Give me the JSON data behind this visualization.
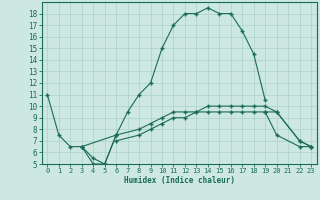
{
  "xlabel": "Humidex (Indice chaleur)",
  "bg_color": "#cce8e0",
  "grid_color": "#b0d4cc",
  "line_color": "#1a6b5a",
  "xlim": [
    -0.5,
    23.5
  ],
  "ylim": [
    5,
    19
  ],
  "xticks": [
    0,
    1,
    2,
    3,
    4,
    5,
    6,
    7,
    8,
    9,
    10,
    11,
    12,
    13,
    14,
    15,
    16,
    17,
    18,
    19,
    20,
    21,
    22,
    23
  ],
  "yticks": [
    5,
    6,
    7,
    8,
    9,
    10,
    11,
    12,
    13,
    14,
    15,
    16,
    17,
    18
  ],
  "line1_x": [
    0,
    1,
    2,
    3,
    4,
    5,
    6,
    7,
    8,
    9,
    10,
    11,
    12,
    13,
    14,
    15,
    16,
    17,
    18,
    19
  ],
  "line1_y": [
    11,
    7.5,
    6.5,
    6.5,
    5.0,
    5.0,
    7.5,
    9.5,
    11.0,
    12.0,
    15.0,
    17.0,
    18.0,
    18.0,
    18.5,
    18.0,
    18.0,
    16.5,
    14.5,
    10.5
  ],
  "line2_x": [
    3,
    4,
    5,
    6,
    19,
    20,
    22,
    23
  ],
  "line2_y": [
    6.5,
    5.5,
    5.0,
    7.5,
    9.5,
    7.5,
    6.5,
    6.5
  ],
  "line2_segs": [
    [
      0,
      7
    ],
    [
      4,
      7
    ]
  ],
  "line3_x": [
    3,
    6,
    8,
    9,
    10,
    11,
    12,
    13,
    14,
    15,
    16,
    17,
    18,
    19,
    20,
    22,
    23
  ],
  "line3_y": [
    6.5,
    7.5,
    8.0,
    8.5,
    9.0,
    9.5,
    9.5,
    9.5,
    9.5,
    9.5,
    9.5,
    9.5,
    9.5,
    9.5,
    9.5,
    7.0,
    6.5
  ],
  "line4_x": [
    6,
    8,
    9,
    10,
    11,
    12,
    13,
    14,
    15,
    16,
    17,
    18,
    19,
    20,
    22,
    23
  ],
  "line4_y": [
    7.0,
    7.5,
    8.0,
    8.5,
    9.0,
    9.0,
    9.5,
    10.0,
    10.0,
    10.0,
    10.0,
    10.0,
    10.0,
    9.5,
    7.0,
    6.5
  ]
}
